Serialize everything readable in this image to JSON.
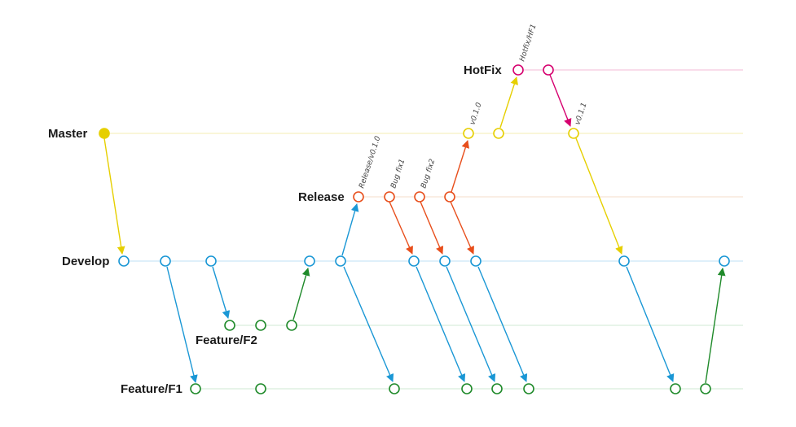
{
  "diagram": {
    "lanes": [
      {
        "id": "hotfix",
        "label": "HotFix",
        "color": "#d6006f"
      },
      {
        "id": "master",
        "label": "Master",
        "color": "#e6cf00"
      },
      {
        "id": "release",
        "label": "Release",
        "color": "#e84e1b"
      },
      {
        "id": "develop",
        "label": "Develop",
        "color": "#1a97d5"
      },
      {
        "id": "f2",
        "label": "Feature/F2",
        "color": "#1f8a2a"
      },
      {
        "id": "f1",
        "label": "Feature/F1",
        "color": "#1f8a2a"
      }
    ],
    "tags": [
      "Release/v0.1.0",
      "Bug fix1",
      "Bug fix2",
      "v0.1.0",
      "Hotfix/HF1",
      "v0.1.1"
    ],
    "icons": {
      "commit": "commit-circle-icon",
      "arrow": "arrow-head-icon"
    }
  }
}
